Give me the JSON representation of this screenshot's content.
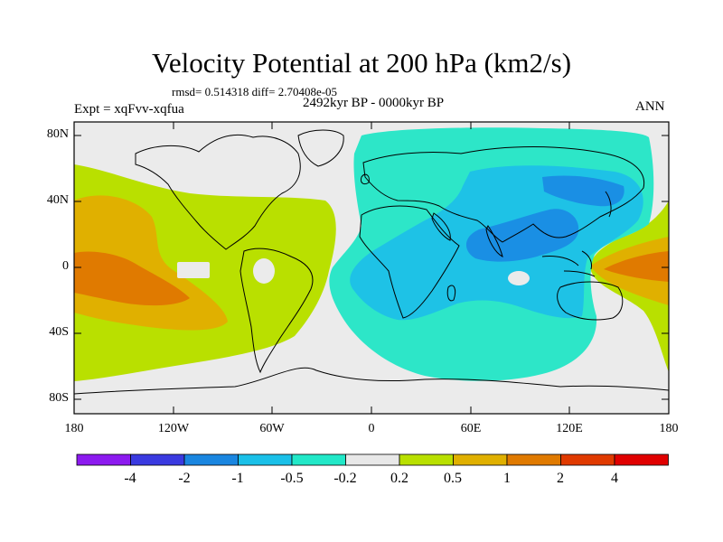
{
  "map": {
    "title": "Velocity Potential at 200 hPa (km2/s)",
    "stats": "rmsd= 0.514318 diff= 2.70408e-05",
    "period": "2492kyr BP - 0000kyr BP",
    "experiment": "Expt = xqFvv-xqfua",
    "season": "ANN",
    "lat_ticks": [
      "80N",
      "40N",
      "0",
      "40S",
      "80S"
    ],
    "lon_ticks": [
      "180",
      "120W",
      "60W",
      "0",
      "60E",
      "120E",
      "180"
    ]
  },
  "colorbar": {
    "labels": [
      "-4",
      "-2",
      "-1",
      "-0.5",
      "-0.2",
      "0.2",
      "0.5",
      "1",
      "2",
      "4"
    ],
    "colors": [
      "#8c1aef",
      "#3a3ae0",
      "#1a86e0",
      "#1ac0e8",
      "#22e8c8",
      "#e8e8e8",
      "#b9e000",
      "#e0b000",
      "#e07a00",
      "#e03a00",
      "#e00000"
    ]
  },
  "field_colors": {
    "neg_0_2": "#2de6c8",
    "neg_0_5": "#1ec2e6",
    "neg_1": "#1a8fe4",
    "near_zero": "#ebebeb",
    "pos_0_2": "#b9e000",
    "pos_0_5": "#e0b000",
    "pos_1": "#e07a00"
  }
}
